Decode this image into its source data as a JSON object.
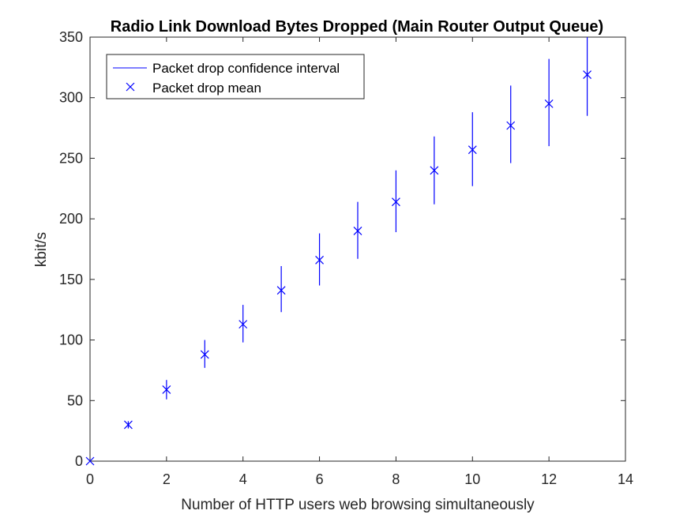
{
  "chart_data": {
    "type": "scatter",
    "title": "Radio Link Download Bytes Dropped (Main Router Output Queue)",
    "xlabel": "Number of HTTP users web browsing simultaneously",
    "ylabel": "kbit/s",
    "xlim": [
      0,
      14
    ],
    "ylim": [
      0,
      350
    ],
    "xticks": [
      0,
      2,
      4,
      6,
      8,
      10,
      12,
      14
    ],
    "yticks": [
      0,
      50,
      100,
      150,
      200,
      250,
      300,
      350
    ],
    "grid": false,
    "legend_position": "top-left",
    "legend": [
      "Packet drop confidence interval",
      "Packet drop mean"
    ],
    "color": "#0000ff",
    "series": [
      {
        "name": "Packet drop mean",
        "x": [
          0,
          1,
          2,
          3,
          4,
          5,
          6,
          7,
          8,
          9,
          10,
          11,
          12,
          13
        ],
        "values": [
          0,
          30,
          59,
          88,
          113,
          141,
          166,
          190,
          214,
          240,
          257,
          277,
          295,
          319
        ]
      },
      {
        "name": "Packet drop confidence interval",
        "x": [
          0,
          1,
          2,
          3,
          4,
          5,
          6,
          7,
          8,
          9,
          10,
          11,
          12,
          13
        ],
        "lower": [
          0,
          27,
          51,
          77,
          98,
          123,
          145,
          167,
          189,
          212,
          227,
          246,
          260,
          285
        ],
        "upper": [
          0,
          33,
          67,
          100,
          129,
          161,
          188,
          214,
          240,
          268,
          288,
          310,
          332,
          355
        ]
      }
    ]
  }
}
